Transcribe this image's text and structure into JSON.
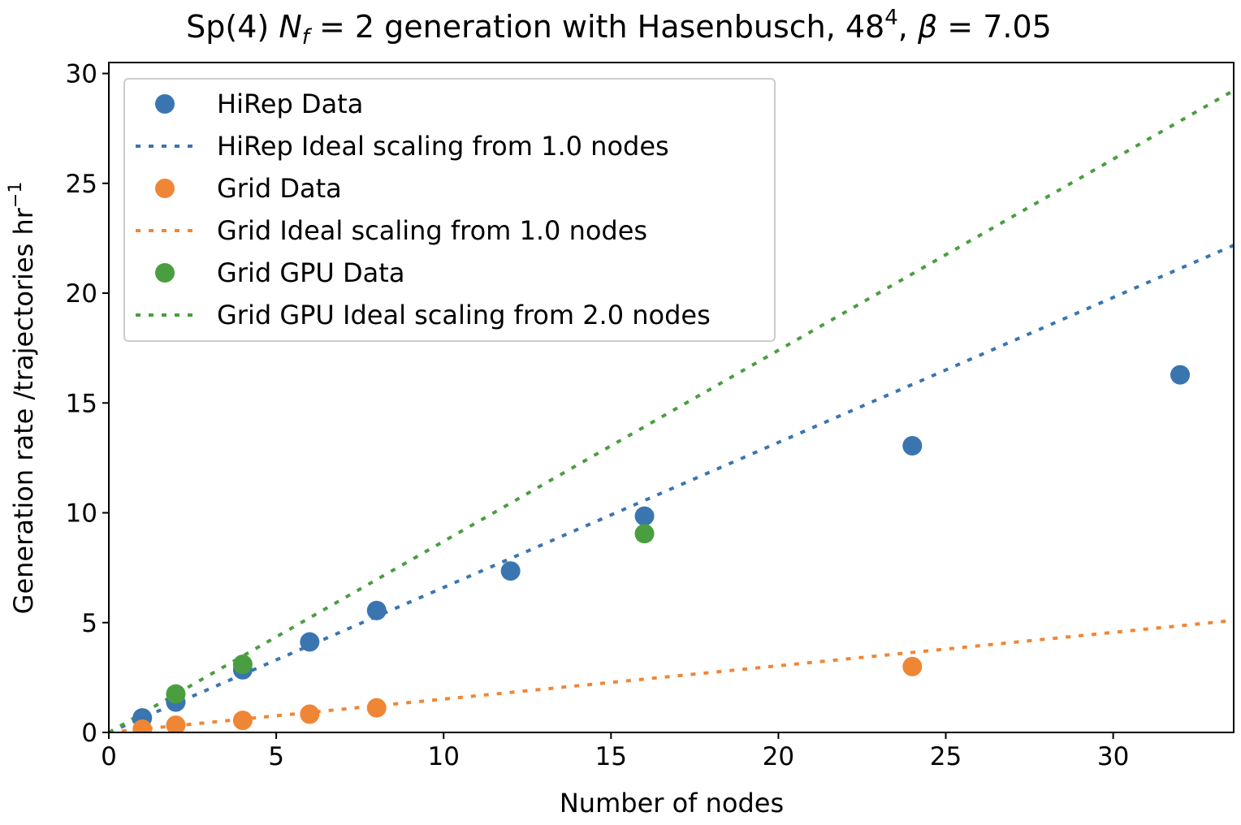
{
  "chart_data": {
    "type": "scatter",
    "title_parts": {
      "pre": "Sp(4) ",
      "N": "N",
      "sub_f": "f",
      "eq1": " = 2 generation with Hasenbusch, 48",
      "sup4": "4",
      "comma": ", ",
      "beta": "β",
      "eq2": " = 7.05"
    },
    "xlabel": "Number of nodes",
    "ylabel_main": "Generation rate /trajectories hr",
    "ylabel_sup": "−1",
    "xlim": [
      0,
      33.6
    ],
    "ylim": [
      0,
      30.5
    ],
    "xticks": [
      0,
      5,
      10,
      15,
      20,
      25,
      30
    ],
    "yticks": [
      0,
      5,
      10,
      15,
      20,
      25,
      30
    ],
    "grid": false,
    "legend_position": "upper-left",
    "series": [
      {
        "name": "HiRep Data",
        "kind": "points",
        "color": "#3a75b0",
        "x": [
          1,
          2,
          4,
          6,
          8,
          12,
          16,
          24,
          32
        ],
        "y": [
          0.66,
          1.38,
          2.85,
          4.12,
          5.55,
          7.35,
          9.85,
          13.05,
          16.28
        ]
      },
      {
        "name": "HiRep Ideal scaling from 1.0 nodes",
        "kind": "line",
        "color": "#3a75b0",
        "x": [
          0,
          33.6
        ],
        "y": [
          0,
          22.18
        ]
      },
      {
        "name": "Grid Data",
        "kind": "points",
        "color": "#ef8636",
        "x": [
          1,
          2,
          4,
          6,
          8,
          24
        ],
        "y": [
          0.15,
          0.33,
          0.55,
          0.83,
          1.12,
          3.0
        ]
      },
      {
        "name": "Grid Ideal scaling from 1.0 nodes",
        "kind": "line",
        "color": "#ef8636",
        "x": [
          0,
          33.6
        ],
        "y": [
          0,
          5.1
        ]
      },
      {
        "name": "Grid GPU Data",
        "kind": "points",
        "color": "#4a9e40",
        "x": [
          2,
          4,
          16
        ],
        "y": [
          1.75,
          3.1,
          9.05
        ]
      },
      {
        "name": "Grid GPU Ideal scaling from 2.0 nodes",
        "kind": "line",
        "color": "#4a9e40",
        "x": [
          0,
          33.6
        ],
        "y": [
          0,
          29.23
        ]
      }
    ]
  }
}
